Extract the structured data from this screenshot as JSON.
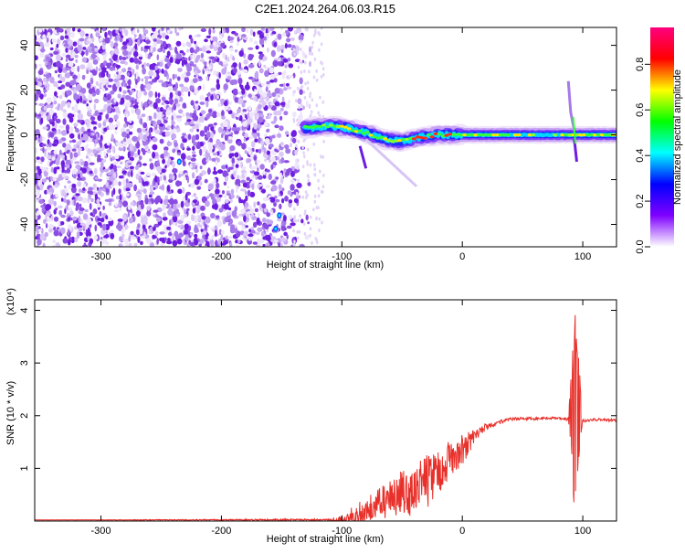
{
  "title": "C2E1.2024.264.06.03.R15",
  "chart_data": [
    {
      "type": "heatmap",
      "name": "spectrogram",
      "xlabel": "Height of straight line (km)",
      "ylabel": "Frequency (Hz)",
      "xlim": [
        -355,
        128
      ],
      "ylim": [
        -50,
        48
      ],
      "xticks": [
        -300,
        -200,
        -100,
        0,
        100
      ],
      "yticks": [
        -40,
        -20,
        0,
        20,
        40
      ],
      "colorbar": {
        "label": "Normalized spectral amplitude",
        "range": [
          0,
          1
        ],
        "ticks": [
          "0.0",
          "0.2",
          "0.4",
          "0.6",
          "0.8"
        ],
        "colors": [
          "#ffffff",
          "#7f00ff",
          "#0000ff",
          "#00ffff",
          "#00ff00",
          "#ffff00",
          "#ff0000",
          "#ff007f"
        ]
      },
      "signal_track": [
        [
          -130,
          3
        ],
        [
          -110,
          4
        ],
        [
          -95,
          3
        ],
        [
          -80,
          1
        ],
        [
          -65,
          -2
        ],
        [
          -50,
          -3
        ],
        [
          -35,
          -1
        ],
        [
          -20,
          0
        ],
        [
          0,
          0
        ],
        [
          50,
          0
        ],
        [
          88,
          0
        ],
        [
          95,
          0
        ],
        [
          128,
          0
        ]
      ]
    },
    {
      "type": "line",
      "name": "snr",
      "xlabel": "Height of straight line (km)",
      "ylabel": "SNR (10 * v/v)",
      "y_multiplier": "(x10⁴)",
      "xlim": [
        -355,
        128
      ],
      "ylim": [
        0,
        4.2
      ],
      "xticks": [
        -300,
        -200,
        -100,
        0,
        100
      ],
      "yticks": [
        1,
        2,
        3,
        4
      ],
      "color": "#e8302a",
      "envelope": [
        [
          -355,
          0.02
        ],
        [
          -110,
          0.04
        ],
        [
          -100,
          0.1
        ],
        [
          -90,
          0.25
        ],
        [
          -80,
          0.4
        ],
        [
          -70,
          0.6
        ],
        [
          -60,
          0.75
        ],
        [
          -50,
          0.9
        ],
        [
          -40,
          1.0
        ],
        [
          -30,
          1.25
        ],
        [
          -20,
          1.4
        ],
        [
          -10,
          1.55
        ],
        [
          0,
          1.6
        ],
        [
          10,
          1.75
        ],
        [
          20,
          1.85
        ],
        [
          30,
          1.92
        ],
        [
          40,
          1.96
        ],
        [
          80,
          1.98
        ],
        [
          88,
          1.95
        ],
        [
          92,
          1.9
        ],
        [
          95,
          2.0
        ],
        [
          98,
          1.96
        ],
        [
          102,
          1.93
        ],
        [
          110,
          1.95
        ],
        [
          128,
          1.93
        ]
      ],
      "noise": [
        [
          -355,
          0.0
        ],
        [
          -110,
          0.02
        ],
        [
          -100,
          0.15
        ],
        [
          -90,
          0.25
        ],
        [
          -80,
          0.3
        ],
        [
          -70,
          0.35
        ],
        [
          -60,
          0.4
        ],
        [
          -50,
          0.5
        ],
        [
          -40,
          0.55
        ],
        [
          -30,
          0.6
        ],
        [
          -20,
          0.55
        ],
        [
          -10,
          0.45
        ],
        [
          0,
          0.35
        ],
        [
          10,
          0.15
        ],
        [
          20,
          0.08
        ],
        [
          40,
          0.03
        ],
        [
          80,
          0.03
        ],
        [
          128,
          0.03
        ]
      ],
      "spike": {
        "x": [
          88,
          100
        ],
        "min": 0.2,
        "max": 4.2
      }
    }
  ]
}
